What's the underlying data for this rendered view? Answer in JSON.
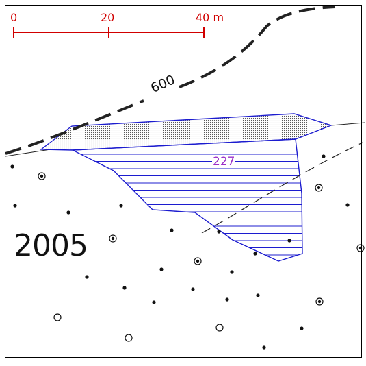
{
  "scale_bar": {
    "labels": [
      "0",
      "20",
      "40 m"
    ],
    "color": "#d10000"
  },
  "year_label": "2005",
  "contour": {
    "label": "600"
  },
  "feature": {
    "id_label": "227",
    "label_color": "#9b2fc9",
    "outline_color": "#1c1ccf"
  },
  "symbols": {
    "dot": "small-black-dot",
    "ring_dot": "dotted-circle-marker",
    "ring": "open-circle-marker"
  }
}
